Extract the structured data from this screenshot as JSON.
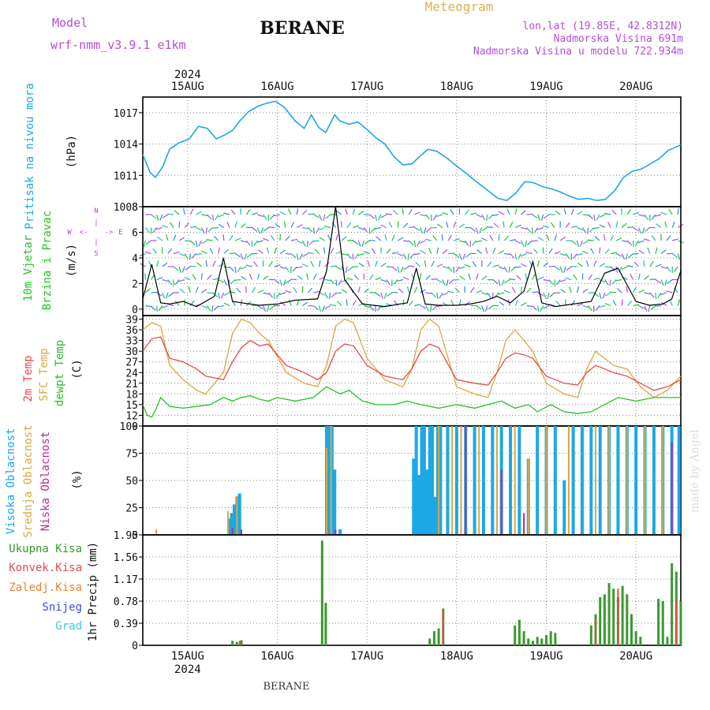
{
  "header": {
    "model_label": "Model",
    "model_name": "wrf-nmm_v3.9.1 e1km",
    "station": "BERANE",
    "meteogram": "Meteogram",
    "coords": "lon,lat (19.85E, 42.8312N)",
    "altitude": "Nadmorska Visina 691m",
    "model_altitude": "Nadmorska Visina u modelu 722.934m",
    "footer_station": "BERANE",
    "credit": "made by Angel"
  },
  "colors": {
    "pressure": "#1ca8e6",
    "wind_label": "#22c422",
    "wind_speed": "#000000",
    "wind_dir_label": "#b44ed8",
    "temp2m": "#e84848",
    "sfc_temp": "#d8a840",
    "dewpt": "#22c422",
    "high_cloud": "#1ca8e6",
    "mid_cloud": "#d8a840",
    "low_cloud": "#c02890",
    "total_precip": "#3a9a30",
    "conv_precip": "#e84848",
    "frozen_precip": "#f08030",
    "snow": "#4848e0",
    "hail": "#40c8c8",
    "title_gold": "#e0b050",
    "title_purple": "#b44ed8"
  },
  "chart_data": [
    {
      "type": "line",
      "panel": "pressure",
      "ylabel_lines": [
        "Pritisak na nivou mora"
      ],
      "units": "(hPa)",
      "yticks": [
        1008,
        1011,
        1014,
        1017
      ],
      "ylim": [
        1008,
        1018.5
      ],
      "x_day_ticks": [
        "15AUG",
        "16AUG",
        "17AUG",
        "18AUG",
        "19AUG",
        "20AUG"
      ],
      "x_year": "2024",
      "x_day_positions": [
        0.5,
        1.5,
        2.5,
        3.5,
        4.5,
        5.5
      ],
      "xlim": [
        0,
        6
      ],
      "series": [
        {
          "x": [
            0,
            0.08,
            0.14,
            0.22,
            0.3,
            0.4,
            0.52,
            0.62,
            0.72,
            0.82,
            0.92,
            1.0,
            1.08,
            1.18,
            1.28,
            1.38,
            1.48,
            1.58,
            1.7,
            1.8,
            1.88,
            1.96,
            2.04,
            2.14,
            2.2,
            2.3,
            2.4,
            2.5,
            2.6,
            2.7,
            2.8,
            2.9,
            3.0,
            3.1,
            3.18,
            3.28,
            3.4,
            3.5,
            3.62,
            3.72,
            3.84,
            3.96,
            4.06,
            4.16,
            4.26,
            4.36,
            4.46,
            4.56,
            4.66,
            4.76,
            4.86,
            4.96,
            5.06,
            5.16,
            5.26,
            5.36,
            5.46,
            5.56,
            5.66,
            5.76,
            5.86,
            6.0
          ],
          "values": [
            1013.0,
            1011.3,
            1010.8,
            1011.8,
            1013.5,
            1014.1,
            1014.5,
            1015.7,
            1015.5,
            1014.5,
            1014.9,
            1015.3,
            1016.2,
            1017.1,
            1017.6,
            1017.9,
            1018.1,
            1017.5,
            1016.2,
            1015.5,
            1016.8,
            1015.6,
            1015.1,
            1016.8,
            1016.2,
            1015.9,
            1016.1,
            1015.4,
            1014.6,
            1014.0,
            1012.8,
            1012.0,
            1012.1,
            1012.9,
            1013.5,
            1013.3,
            1012.6,
            1011.9,
            1011.1,
            1010.4,
            1009.6,
            1008.8,
            1008.6,
            1009.3,
            1010.4,
            1010.3,
            1009.9,
            1009.7,
            1009.4,
            1009.0,
            1008.7,
            1008.8,
            1008.6,
            1008.7,
            1009.5,
            1010.8,
            1011.4,
            1011.6,
            1012.1,
            1012.6,
            1013.4,
            1013.9
          ]
        }
      ]
    },
    {
      "type": "line",
      "panel": "wind",
      "ylabel_lines": [
        "10m Vjetar",
        "Brzina i Pravac"
      ],
      "units": "(m/s)",
      "direction_key": [
        "N",
        "S",
        "W",
        "E",
        "<-",
        "->",
        "|"
      ],
      "yticks": [
        0,
        2,
        4,
        6,
        8
      ],
      "ylim": [
        -0.5,
        8
      ],
      "series": [
        {
          "name": "speed",
          "x": [
            0.0,
            0.1,
            0.2,
            0.3,
            0.45,
            0.6,
            0.8,
            0.9,
            1.0,
            1.1,
            1.3,
            1.5,
            1.7,
            1.95,
            2.05,
            2.15,
            2.25,
            2.45,
            2.7,
            2.95,
            3.05,
            3.15,
            3.3,
            3.5,
            3.65,
            3.8,
            3.95,
            4.1,
            4.25,
            4.35,
            4.45,
            4.6,
            4.8,
            5.0,
            5.15,
            5.3,
            5.5,
            5.65,
            5.8,
            5.9,
            6.0
          ],
          "values": [
            0.8,
            3.5,
            0.5,
            0.4,
            0.6,
            0.2,
            1.0,
            4.0,
            0.6,
            0.5,
            0.3,
            0.4,
            0.7,
            0.8,
            3.0,
            8.0,
            2.3,
            0.4,
            0.2,
            0.5,
            3.2,
            0.4,
            0.3,
            0.3,
            0.4,
            0.6,
            1.0,
            0.5,
            1.4,
            3.7,
            0.5,
            0.2,
            0.4,
            0.6,
            2.8,
            3.2,
            0.6,
            0.3,
            0.4,
            0.8,
            3.0
          ]
        }
      ]
    },
    {
      "type": "line",
      "panel": "temperature",
      "ylabel_lines": [
        "2m Temp",
        "SFC Temp",
        "dewpt Temp"
      ],
      "units": "(C)",
      "yticks": [
        9,
        12,
        15,
        18,
        21,
        24,
        27,
        30,
        33,
        36,
        39
      ],
      "ylim": [
        9,
        40
      ],
      "series": [
        {
          "name": "2m Temp",
          "x": [
            0,
            0.1,
            0.2,
            0.3,
            0.45,
            0.6,
            0.7,
            0.9,
            1.0,
            1.1,
            1.2,
            1.3,
            1.4,
            1.6,
            1.8,
            1.95,
            2.05,
            2.15,
            2.25,
            2.35,
            2.5,
            2.7,
            2.9,
            3.0,
            3.1,
            3.2,
            3.3,
            3.5,
            3.7,
            3.85,
            3.95,
            4.05,
            4.15,
            4.25,
            4.35,
            4.5,
            4.7,
            4.85,
            4.95,
            5.05,
            5.15,
            5.25,
            5.4,
            5.55,
            5.7,
            5.85,
            6.0
          ],
          "values": [
            30,
            33.5,
            34,
            28,
            27,
            25,
            23,
            22,
            27,
            31,
            33,
            31.5,
            32,
            26,
            24,
            22,
            24,
            30,
            32,
            31.5,
            26,
            23,
            22,
            25,
            30,
            32,
            31,
            22,
            21,
            20.5,
            24,
            28,
            29.5,
            29,
            28,
            23,
            21,
            20.5,
            24,
            26,
            25,
            24,
            23,
            21,
            19,
            20,
            22
          ]
        },
        {
          "name": "SFC Temp",
          "x": [
            0,
            0.1,
            0.2,
            0.3,
            0.45,
            0.6,
            0.7,
            0.9,
            1.0,
            1.1,
            1.2,
            1.3,
            1.4,
            1.6,
            1.8,
            1.95,
            2.05,
            2.15,
            2.25,
            2.35,
            2.5,
            2.7,
            2.9,
            3.0,
            3.1,
            3.2,
            3.3,
            3.5,
            3.7,
            3.85,
            3.95,
            4.05,
            4.15,
            4.25,
            4.35,
            4.5,
            4.7,
            4.85,
            4.95,
            5.05,
            5.15,
            5.25,
            5.4,
            5.55,
            5.7,
            5.85,
            6.0
          ],
          "values": [
            36,
            38,
            37,
            26,
            22,
            19,
            18,
            24,
            35,
            39,
            38,
            35,
            33,
            24,
            21,
            20,
            26,
            37,
            39,
            38,
            28,
            22,
            20,
            25,
            36,
            39,
            37,
            20,
            18,
            17,
            24,
            33,
            36,
            33,
            30,
            21,
            18,
            17,
            25,
            30,
            28,
            26,
            25,
            20,
            17,
            19,
            23
          ]
        },
        {
          "name": "dewpt Temp",
          "x": [
            0,
            0.05,
            0.1,
            0.15,
            0.2,
            0.3,
            0.45,
            0.6,
            0.75,
            0.9,
            1.0,
            1.1,
            1.2,
            1.3,
            1.4,
            1.5,
            1.7,
            1.9,
            2.05,
            2.2,
            2.3,
            2.45,
            2.6,
            2.8,
            2.95,
            3.1,
            3.3,
            3.5,
            3.7,
            3.85,
            4.0,
            4.15,
            4.3,
            4.4,
            4.55,
            4.7,
            4.85,
            5.0,
            5.15,
            5.3,
            5.5,
            5.7,
            5.85,
            6.0
          ],
          "values": [
            15,
            12,
            11.5,
            14,
            17,
            14.5,
            14,
            14.5,
            15,
            17,
            16,
            17,
            17.5,
            16.5,
            16,
            17,
            16,
            17,
            20,
            18,
            19,
            16,
            15,
            15,
            16,
            15,
            14,
            15,
            14,
            15,
            16,
            14,
            15,
            13,
            15,
            13,
            12.5,
            13,
            15,
            17,
            16,
            17,
            17,
            17
          ]
        }
      ]
    },
    {
      "type": "bar",
      "panel": "clouds",
      "ylabel_lines": [
        "Visoka Oblacnost",
        "Srednja Oblacnost",
        "Niska Oblacnost"
      ],
      "units": "(%)",
      "yticks": [
        0,
        25,
        50,
        75,
        100
      ],
      "ylim": [
        0,
        100
      ],
      "high_cloud": {
        "x": [
          0.96,
          0.99,
          1.02,
          1.05,
          1.08,
          2.05,
          2.08,
          2.11,
          2.14,
          2.2,
          3.02,
          3.05,
          3.08,
          3.11,
          3.14,
          3.17,
          3.2,
          3.23,
          3.26,
          3.29,
          3.32,
          3.4,
          3.5,
          3.6,
          3.7,
          3.8,
          3.9,
          4.0,
          4.1,
          4.2,
          4.3,
          4.4,
          4.5,
          4.6,
          4.7,
          4.8,
          4.9,
          5.0,
          5.1,
          5.2,
          5.3,
          5.4,
          5.5,
          5.6,
          5.7,
          5.8,
          5.9,
          5.98
        ],
        "values": [
          15,
          20,
          28,
          35,
          38,
          100,
          100,
          100,
          60,
          5,
          70,
          100,
          55,
          100,
          100,
          60,
          100,
          100,
          35,
          100,
          100,
          100,
          100,
          100,
          100,
          100,
          100,
          100,
          100,
          100,
          70,
          100,
          100,
          100,
          50,
          100,
          100,
          100,
          100,
          100,
          100,
          100,
          100,
          100,
          100,
          100,
          100,
          100
        ]
      },
      "mid_cloud": {
        "x": [
          0.15,
          0.95,
          1.05,
          2.05,
          2.1,
          3.3,
          3.45,
          3.55,
          3.75,
          3.95,
          4.15,
          4.3,
          4.5,
          4.75,
          5.05,
          5.2,
          5.4,
          5.6,
          5.8
        ],
        "values": [
          5,
          22,
          36,
          80,
          100,
          100,
          100,
          100,
          100,
          100,
          100,
          70,
          100,
          100,
          100,
          100,
          100,
          100,
          100
        ]
      },
      "low_cloud": {
        "x": [
          1.0,
          1.1,
          2.15,
          3.6,
          4.0,
          4.25,
          5.9
        ],
        "values": [
          6,
          5,
          5,
          100,
          60,
          20,
          85
        ]
      }
    },
    {
      "type": "bar",
      "panel": "precipitation",
      "legend": [
        "Ukupna Kisa",
        "Konvek.Kisa",
        "Zaledj.Kisa",
        "Snijeg",
        "Grad"
      ],
      "ylabel": "1hr Precip (mm)",
      "yticks": [
        0,
        0.39,
        0.78,
        1.17,
        1.56,
        1.95
      ],
      "ylim": [
        0,
        1.95
      ],
      "total": {
        "x": [
          1.0,
          1.05,
          1.1,
          2.0,
          2.04,
          3.2,
          3.25,
          3.3,
          3.35,
          4.15,
          4.2,
          4.25,
          4.3,
          4.35,
          4.4,
          4.45,
          4.5,
          4.55,
          4.6,
          5.0,
          5.05,
          5.1,
          5.15,
          5.2,
          5.25,
          5.3,
          5.35,
          5.4,
          5.45,
          5.5,
          5.55,
          5.75,
          5.8,
          5.85,
          5.9,
          5.95,
          6.0
        ],
        "values": [
          0.08,
          0.06,
          0.09,
          1.85,
          0.75,
          0.12,
          0.25,
          0.3,
          0.65,
          0.35,
          0.45,
          0.25,
          0.12,
          0.08,
          0.15,
          0.12,
          0.18,
          0.25,
          0.22,
          0.35,
          0.55,
          0.85,
          0.9,
          1.1,
          1.0,
          0.85,
          1.05,
          0.9,
          0.55,
          0.25,
          0.15,
          0.82,
          0.78,
          0.15,
          1.45,
          1.3,
          0.78
        ]
      },
      "convective": {
        "x": [
          1.08,
          3.35,
          5.05,
          5.3,
          5.95
        ],
        "values": [
          0.08,
          0.62,
          0.45,
          1.0,
          0.78
        ]
      }
    }
  ]
}
